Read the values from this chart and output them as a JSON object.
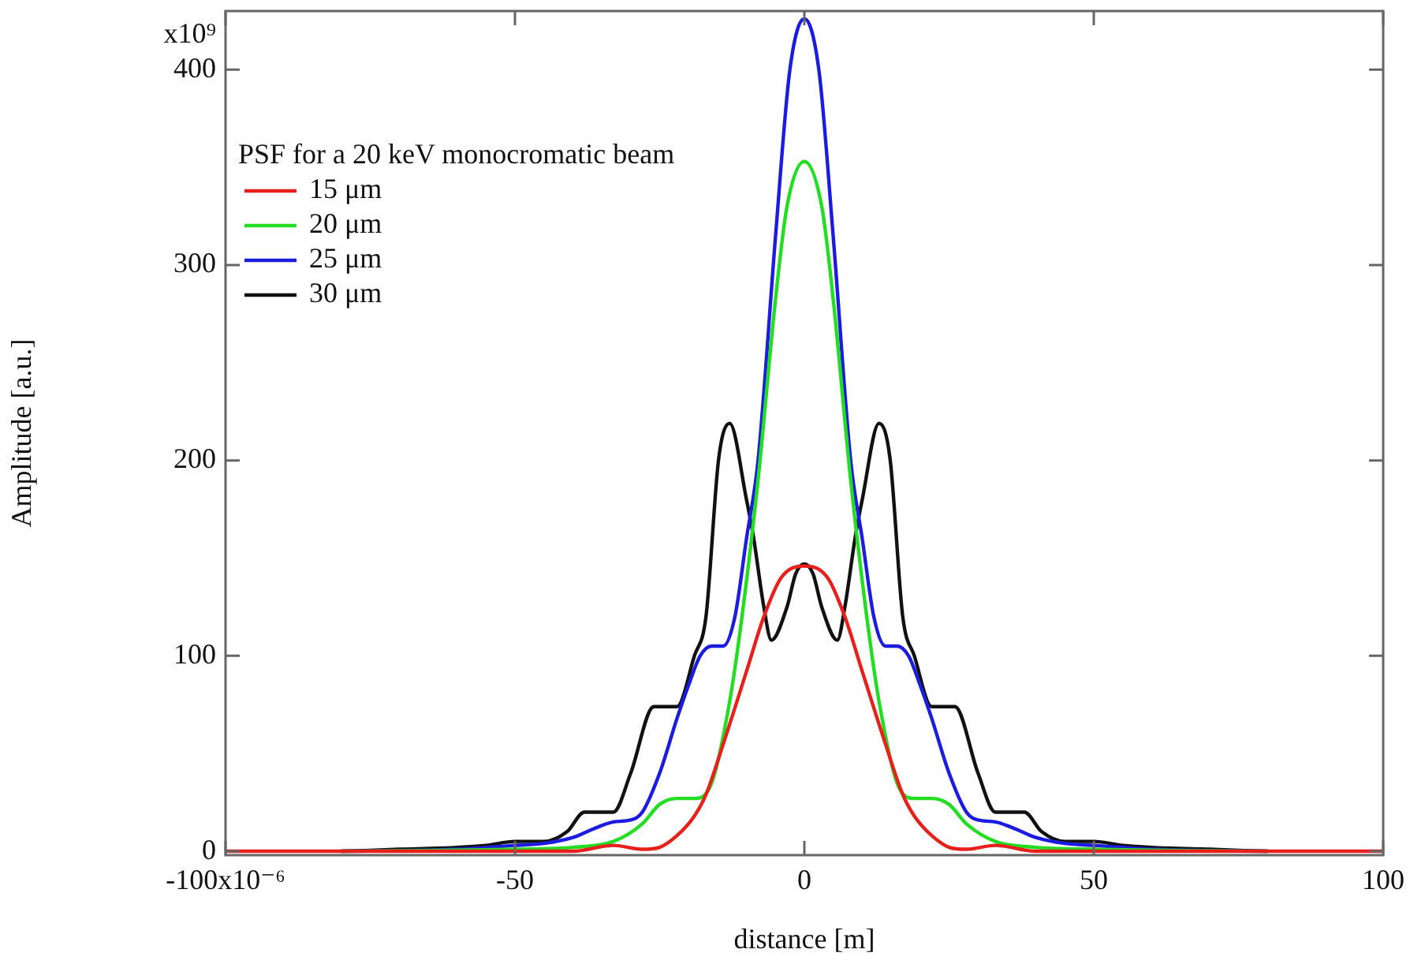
{
  "chart_data": {
    "type": "line",
    "xlabel": "distance [m]",
    "ylabel": "Amplitude [a.u.]",
    "legend_title": "PSF for a 20 keV monocromatic beam",
    "legend": "top left",
    "grid": false,
    "marker": "none",
    "line_style": "solid",
    "xlim": [
      -100,
      100
    ],
    "ylim": [
      -2,
      430
    ],
    "xticks": [
      -100,
      -50,
      0,
      50,
      100
    ],
    "yticks": [
      0,
      100,
      200,
      300,
      400
    ],
    "annotations": [
      "x10⁻⁶",
      "x10⁹"
    ],
    "series": [
      {
        "name": "15 μm",
        "color": "#e8201c",
        "x": [
          -100,
          -80,
          -40,
          -33,
          -28,
          -25,
          -22,
          -19,
          -17,
          -14,
          -10,
          -7,
          -4,
          0,
          4,
          7,
          10,
          14,
          17,
          19,
          22,
          25,
          28,
          33,
          40,
          80,
          100
        ],
        "values": [
          0,
          0,
          0,
          3,
          1,
          2,
          8,
          18,
          29,
          55,
          92,
          120,
          140,
          146,
          140,
          120,
          92,
          55,
          29,
          18,
          8,
          2,
          1,
          3,
          0,
          0,
          0
        ]
      },
      {
        "name": "20 μm",
        "color": "#22dd22",
        "x": [
          -80,
          -50,
          -40,
          -33,
          -28,
          -25,
          -22,
          -19,
          -16,
          -13,
          -11,
          -8,
          -5,
          -3,
          0,
          3,
          5,
          8,
          11,
          13,
          16,
          19,
          22,
          25,
          28,
          33,
          40,
          50,
          80
        ],
        "values": [
          0,
          1,
          2,
          5,
          14,
          24,
          27,
          27,
          35,
          75,
          115,
          190,
          282,
          330,
          353,
          330,
          282,
          190,
          115,
          75,
          35,
          27,
          27,
          24,
          14,
          5,
          2,
          1,
          0
        ]
      },
      {
        "name": "25 μm",
        "color": "#1c1ce0",
        "x": [
          -80,
          -60,
          -50,
          -45,
          -40,
          -36,
          -33,
          -30,
          -28,
          -25,
          -22,
          -20,
          -18,
          -16,
          -14,
          -12,
          -10,
          -8,
          -5,
          -2.5,
          0,
          2.5,
          5,
          8,
          10,
          12,
          14,
          16,
          18,
          20,
          22,
          25,
          28,
          30,
          33,
          36,
          40,
          45,
          50,
          60,
          80
        ],
        "values": [
          0,
          1,
          3,
          4,
          7,
          12,
          15,
          16,
          20,
          40,
          68,
          85,
          100,
          105,
          105,
          120,
          160,
          200,
          314,
          400,
          426,
          400,
          314,
          200,
          160,
          120,
          105,
          105,
          100,
          85,
          68,
          40,
          20,
          16,
          15,
          12,
          7,
          4,
          3,
          1,
          0
        ]
      },
      {
        "name": "30 μm",
        "color": "#111111",
        "x": [
          -80,
          -70,
          -60,
          -55,
          -50,
          -45,
          -41,
          -38,
          -33,
          -30,
          -26,
          -22,
          -19,
          -17,
          -14.8,
          -12.9,
          -10,
          -8.8,
          -7,
          -5.7,
          -3,
          -1.5,
          0,
          1.5,
          3,
          5.7,
          7,
          8.8,
          10,
          12.9,
          14.8,
          17,
          19,
          22,
          26,
          30,
          33,
          38,
          41,
          45,
          50,
          55,
          60,
          70,
          80
        ],
        "values": [
          0,
          1,
          2,
          3,
          5,
          5,
          10,
          20,
          20,
          40,
          74,
          74,
          100,
          120,
          201,
          219,
          180,
          161,
          125,
          108,
          125,
          142,
          147,
          142,
          125,
          108,
          125,
          161,
          180,
          219,
          201,
          120,
          100,
          74,
          74,
          40,
          20,
          20,
          10,
          5,
          5,
          3,
          2,
          1,
          0
        ]
      }
    ]
  }
}
